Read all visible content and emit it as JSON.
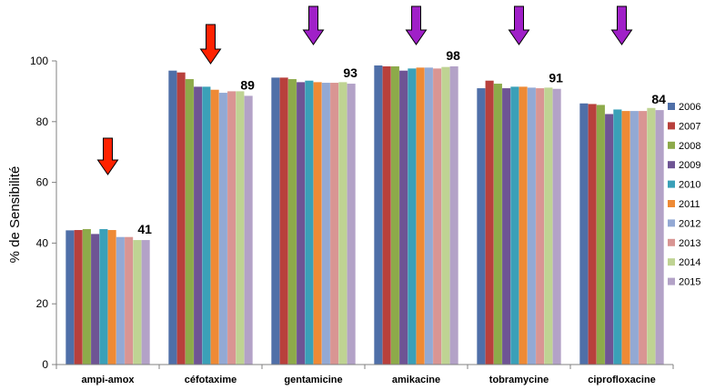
{
  "chart_data": {
    "type": "bar",
    "title": "",
    "xlabel": "",
    "ylabel": "% de Sensibilité",
    "ylim": [
      0,
      100
    ],
    "yticks": [
      "0",
      "20",
      "40",
      "60",
      "80",
      "100"
    ],
    "grid": false,
    "legend_position": "right",
    "categories": [
      "ampi-amox",
      "céfotaxime",
      "gentamicine",
      "amikacine",
      "tobramycine",
      "ciprofloxacine"
    ],
    "series": [
      {
        "name": "2006",
        "color": "#4F6FA8",
        "values": [
          44.2,
          96.8,
          94.5,
          98.5,
          91.0,
          86.0
        ]
      },
      {
        "name": "2007",
        "color": "#B8403C",
        "values": [
          44.3,
          96.2,
          94.5,
          98.2,
          93.5,
          85.8
        ]
      },
      {
        "name": "2008",
        "color": "#8DAA4A",
        "values": [
          44.6,
          94.0,
          94.0,
          98.2,
          92.5,
          85.5
        ]
      },
      {
        "name": "2009",
        "color": "#6E5494",
        "values": [
          43.0,
          91.5,
          93.0,
          96.8,
          91.0,
          82.5
        ]
      },
      {
        "name": "2010",
        "color": "#3AA0B8",
        "values": [
          44.6,
          91.5,
          93.5,
          97.5,
          91.5,
          84.0
        ]
      },
      {
        "name": "2011",
        "color": "#EE8A35",
        "values": [
          44.3,
          90.5,
          93.0,
          97.8,
          91.5,
          83.5
        ]
      },
      {
        "name": "2012",
        "color": "#93A9D4",
        "values": [
          42.0,
          89.5,
          92.8,
          97.8,
          91.2,
          83.5
        ]
      },
      {
        "name": "2013",
        "color": "#D99593",
        "values": [
          42.0,
          90.0,
          92.8,
          97.5,
          91.0,
          83.5
        ]
      },
      {
        "name": "2014",
        "color": "#BFD393",
        "values": [
          41.0,
          90.0,
          93.0,
          98.0,
          91.2,
          84.5
        ]
      },
      {
        "name": "2015",
        "color": "#B3A2C7",
        "values": [
          41.0,
          88.5,
          92.5,
          98.2,
          90.8,
          83.8
        ]
      }
    ],
    "data_labels": [
      "41",
      "89",
      "93",
      "98",
      "91",
      "84"
    ],
    "arrows": [
      {
        "category": "ampi-amox",
        "color": "#FF2200"
      },
      {
        "category": "céfotaxime",
        "color": "#FF2200"
      },
      {
        "category": "gentamicine",
        "color": "#A020C8"
      },
      {
        "category": "amikacine",
        "color": "#A020C8"
      },
      {
        "category": "tobramycine",
        "color": "#A020C8"
      },
      {
        "category": "ciprofloxacine",
        "color": "#A020C8"
      }
    ]
  }
}
